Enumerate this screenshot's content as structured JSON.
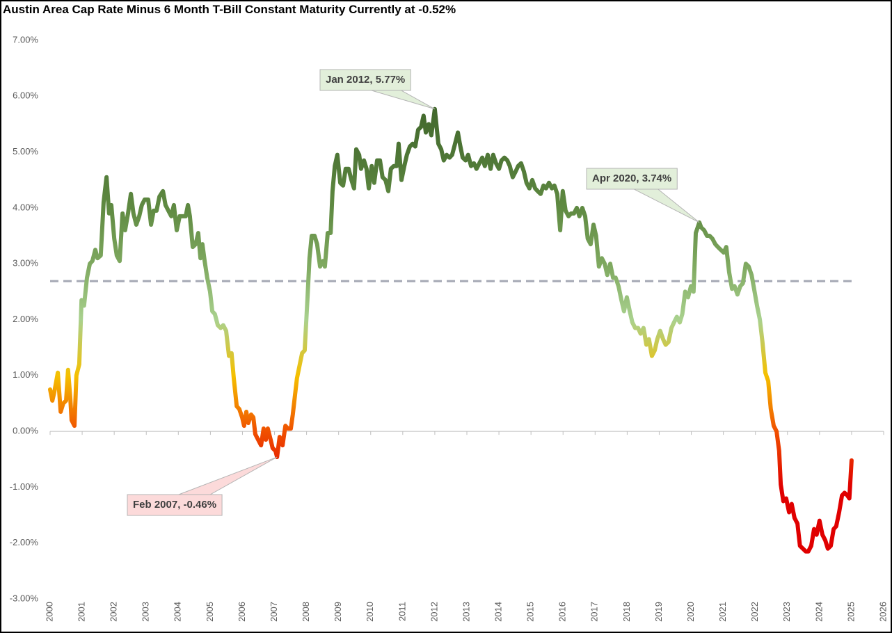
{
  "chart_data": {
    "type": "line",
    "title": "Austin Area Cap Rate Minus 6 Month T-Bill Constant Maturity Currently at -0.52%",
    "x": [
      2000.0,
      2000.07,
      2000.13,
      2000.24,
      2000.33,
      2000.41,
      2000.5,
      2000.56,
      2000.63,
      2000.67,
      2000.76,
      2000.82,
      2000.91,
      2000.98,
      2001.06,
      2001.15,
      2001.24,
      2001.32,
      2001.41,
      2001.48,
      2001.58,
      2001.67,
      2001.76,
      2001.84,
      2001.91,
      2002.0,
      2002.08,
      2002.17,
      2002.26,
      2002.34,
      2002.43,
      2002.52,
      2002.6,
      2002.69,
      2002.78,
      2002.86,
      2002.95,
      2003.06,
      2003.15,
      2003.23,
      2003.32,
      2003.41,
      2003.52,
      2003.6,
      2003.69,
      2003.78,
      2003.86,
      2003.95,
      2004.04,
      2004.14,
      2004.23,
      2004.3,
      2004.36,
      2004.45,
      2004.54,
      2004.62,
      2004.69,
      2004.75,
      2004.82,
      2004.9,
      2004.99,
      2005.06,
      2005.14,
      2005.23,
      2005.32,
      2005.4,
      2005.49,
      2005.58,
      2005.66,
      2005.73,
      2005.82,
      2005.9,
      2005.99,
      2006.05,
      2006.12,
      2006.18,
      2006.27,
      2006.34,
      2006.4,
      2006.49,
      2006.58,
      2006.66,
      2006.73,
      2006.79,
      2006.88,
      2006.94,
      2007.03,
      2007.08,
      2007.16,
      2007.25,
      2007.34,
      2007.42,
      2007.51,
      2007.57,
      2007.64,
      2007.7,
      2007.79,
      2007.86,
      2007.94,
      2008.03,
      2008.09,
      2008.16,
      2008.25,
      2008.33,
      2008.42,
      2008.51,
      2008.57,
      2008.66,
      2008.75,
      2008.81,
      2008.88,
      2008.96,
      2009.05,
      2009.14,
      2009.22,
      2009.31,
      2009.4,
      2009.48,
      2009.55,
      2009.64,
      2009.7,
      2009.79,
      2009.87,
      2009.94,
      2010.03,
      2010.11,
      2010.2,
      2010.29,
      2010.37,
      2010.46,
      2010.55,
      2010.63,
      2010.72,
      2010.81,
      2010.87,
      2010.96,
      2011.05,
      2011.13,
      2011.22,
      2011.31,
      2011.39,
      2011.48,
      2011.57,
      2011.65,
      2011.72,
      2011.81,
      2011.89,
      2011.95,
      2012.0,
      2012.11,
      2012.2,
      2012.28,
      2012.37,
      2012.46,
      2012.54,
      2012.63,
      2012.72,
      2012.78,
      2012.87,
      2012.96,
      2013.04,
      2013.13,
      2013.22,
      2013.3,
      2013.39,
      2013.48,
      2013.56,
      2013.65,
      2013.74,
      2013.82,
      2013.91,
      2014.0,
      2014.08,
      2014.17,
      2014.26,
      2014.34,
      2014.43,
      2014.52,
      2014.6,
      2014.69,
      2014.78,
      2014.86,
      2014.95,
      2015.04,
      2015.13,
      2015.21,
      2015.3,
      2015.39,
      2015.47,
      2015.56,
      2015.65,
      2015.73,
      2015.82,
      2015.91,
      2015.99,
      2016.08,
      2016.17,
      2016.25,
      2016.34,
      2016.43,
      2016.51,
      2016.6,
      2016.69,
      2016.77,
      2016.86,
      2016.95,
      2017.03,
      2017.12,
      2017.21,
      2017.3,
      2017.38,
      2017.47,
      2017.56,
      2017.64,
      2017.73,
      2017.82,
      2017.9,
      2017.99,
      2018.08,
      2018.16,
      2018.25,
      2018.34,
      2018.42,
      2018.51,
      2018.6,
      2018.68,
      2018.77,
      2018.86,
      2018.94,
      2019.03,
      2019.12,
      2019.2,
      2019.29,
      2019.38,
      2019.46,
      2019.55,
      2019.64,
      2019.72,
      2019.81,
      2019.9,
      2019.99,
      2020.07,
      2020.14,
      2020.25,
      2020.31,
      2020.4,
      2020.49,
      2020.57,
      2020.66,
      2020.75,
      2020.83,
      2020.92,
      2021.01,
      2021.09,
      2021.18,
      2021.27,
      2021.35,
      2021.44,
      2021.53,
      2021.61,
      2021.7,
      2021.79,
      2021.88,
      2021.96,
      2022.05,
      2022.14,
      2022.22,
      2022.31,
      2022.4,
      2022.48,
      2022.57,
      2022.66,
      2022.74,
      2022.79,
      2022.87,
      2022.96,
      2023.05,
      2023.13,
      2023.22,
      2023.31,
      2023.39,
      2023.48,
      2023.57,
      2023.65,
      2023.74,
      2023.83,
      2023.91,
      2024.0,
      2024.09,
      2024.18,
      2024.26,
      2024.35,
      2024.44,
      2024.52,
      2024.61,
      2024.7,
      2024.78,
      2024.87,
      2024.93,
      2025.0
    ],
    "values": [
      0.75,
      0.55,
      0.7,
      1.05,
      0.35,
      0.5,
      0.55,
      1.1,
      0.6,
      0.2,
      0.1,
      1.0,
      1.2,
      2.35,
      2.25,
      2.75,
      3.0,
      3.05,
      3.25,
      3.1,
      3.15,
      4.1,
      4.55,
      3.9,
      4.05,
      3.45,
      3.15,
      3.05,
      3.9,
      3.6,
      3.9,
      4.25,
      3.9,
      3.7,
      3.85,
      4.05,
      4.15,
      4.15,
      3.7,
      3.95,
      3.95,
      4.2,
      4.3,
      4.05,
      3.95,
      3.85,
      4.05,
      3.6,
      3.85,
      3.85,
      3.85,
      4.05,
      3.85,
      3.3,
      3.35,
      3.55,
      3.1,
      3.35,
      3.05,
      2.75,
      2.5,
      2.15,
      2.1,
      1.9,
      1.85,
      1.9,
      1.8,
      1.35,
      1.4,
      0.95,
      0.45,
      0.4,
      0.25,
      0.1,
      0.35,
      0.15,
      0.3,
      0.25,
      -0.05,
      -0.15,
      -0.25,
      0.05,
      -0.15,
      0.05,
      -0.15,
      -0.3,
      -0.35,
      -0.46,
      -0.1,
      -0.25,
      0.1,
      0.05,
      0.05,
      0.3,
      0.65,
      0.95,
      1.2,
      1.4,
      1.45,
      2.4,
      3.1,
      3.5,
      3.5,
      3.35,
      2.95,
      3.05,
      2.95,
      3.55,
      3.55,
      4.3,
      4.75,
      4.95,
      4.45,
      4.4,
      4.7,
      4.7,
      4.5,
      4.35,
      5.05,
      4.95,
      4.7,
      4.85,
      4.7,
      4.35,
      4.75,
      4.45,
      4.85,
      4.85,
      4.55,
      4.5,
      4.3,
      4.7,
      4.75,
      4.75,
      5.15,
      4.5,
      4.75,
      4.95,
      5.1,
      5.15,
      5.1,
      5.4,
      5.45,
      5.65,
      5.35,
      5.5,
      5.3,
      5.55,
      5.77,
      5.15,
      5.05,
      4.85,
      4.95,
      4.9,
      4.95,
      5.15,
      5.35,
      5.15,
      4.9,
      4.85,
      4.95,
      4.75,
      4.8,
      4.7,
      4.8,
      4.9,
      4.75,
      4.95,
      4.7,
      4.95,
      4.8,
      4.7,
      4.85,
      4.9,
      4.85,
      4.75,
      4.55,
      4.65,
      4.75,
      4.8,
      4.65,
      4.45,
      4.35,
      4.5,
      4.35,
      4.3,
      4.25,
      4.4,
      4.35,
      4.45,
      4.35,
      4.4,
      4.25,
      3.6,
      4.3,
      3.95,
      3.85,
      3.9,
      3.9,
      4.0,
      3.85,
      4.0,
      3.85,
      3.45,
      3.35,
      3.7,
      3.5,
      2.95,
      3.1,
      3.0,
      2.8,
      3.0,
      2.75,
      2.75,
      2.6,
      2.35,
      2.15,
      2.4,
      2.15,
      1.95,
      1.85,
      1.85,
      1.75,
      1.85,
      1.55,
      1.65,
      1.35,
      1.45,
      1.65,
      1.8,
      1.65,
      1.55,
      1.6,
      1.85,
      1.95,
      2.05,
      1.95,
      2.1,
      2.5,
      2.4,
      2.6,
      2.5,
      3.55,
      3.74,
      3.65,
      3.6,
      3.5,
      3.5,
      3.45,
      3.35,
      3.3,
      3.25,
      3.2,
      3.3,
      2.85,
      2.55,
      2.6,
      2.45,
      2.6,
      2.65,
      3.0,
      2.95,
      2.8,
      2.55,
      2.25,
      2.0,
      1.6,
      1.05,
      0.9,
      0.4,
      0.1,
      0.0,
      -0.35,
      -0.95,
      -1.25,
      -1.2,
      -1.45,
      -1.3,
      -1.55,
      -1.65,
      -2.05,
      -2.1,
      -2.15,
      -2.15,
      -2.05,
      -1.75,
      -1.85,
      -1.6,
      -1.85,
      -1.95,
      -2.1,
      -2.05,
      -1.75,
      -1.7,
      -1.45,
      -1.15,
      -1.1,
      -1.15,
      -1.2,
      -0.52
    ],
    "line_gradient": [
      "#e00000",
      "#e00000",
      "#e00000",
      "#f05000",
      "#f5c000",
      "#a9d18e",
      "#7ea85f",
      "#5f8a42",
      "#4d7535",
      "#3f652a",
      "#3f652a"
    ],
    "xlim": [
      2000,
      2026
    ],
    "xticks": [
      2000,
      2001,
      2002,
      2003,
      2004,
      2005,
      2006,
      2007,
      2008,
      2009,
      2010,
      2011,
      2012,
      2013,
      2014,
      2015,
      2016,
      2017,
      2018,
      2019,
      2020,
      2021,
      2022,
      2023,
      2024,
      2025,
      2026
    ],
    "ylim": [
      -3,
      7
    ],
    "yticks": [
      {
        "value": -3,
        "label": "-3.00%"
      },
      {
        "value": -2,
        "label": "-2.00%"
      },
      {
        "value": -1,
        "label": "-1.00%"
      },
      {
        "value": 0,
        "label": "0.00%"
      },
      {
        "value": 1,
        "label": "1.00%"
      },
      {
        "value": 2,
        "label": "2.00%"
      },
      {
        "value": 3,
        "label": "3.00%"
      },
      {
        "value": 4,
        "label": "4.00%"
      },
      {
        "value": 5,
        "label": "5.00%"
      },
      {
        "value": 6,
        "label": "6.00%"
      },
      {
        "value": 7,
        "label": "7.00%"
      }
    ],
    "reference_line": {
      "value": 2.69,
      "color": "#a5a8b4"
    },
    "annotations": [
      {
        "text": "Jan 2012, 5.77%",
        "x": 2012.0,
        "y": 5.77,
        "fill": "#e2efda"
      },
      {
        "text": "Feb 2007, -0.46%",
        "x": 2007.08,
        "y": -0.46,
        "fill": "#fcdada"
      },
      {
        "text": "Apr 2020, 3.74%",
        "x": 2020.25,
        "y": 3.74,
        "fill": "#e2efda"
      }
    ]
  }
}
